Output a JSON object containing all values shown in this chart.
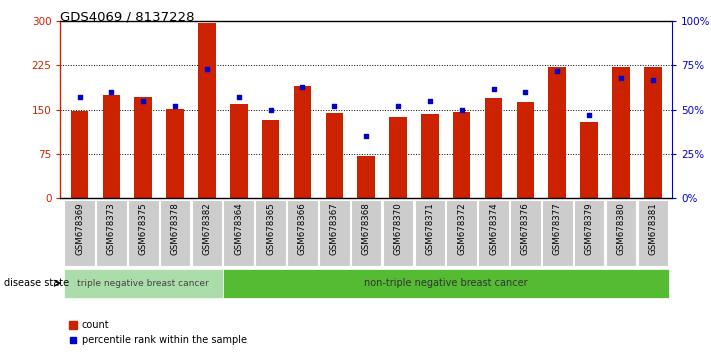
{
  "title": "GDS4069 / 8137228",
  "samples": [
    "GSM678369",
    "GSM678373",
    "GSM678375",
    "GSM678378",
    "GSM678382",
    "GSM678364",
    "GSM678365",
    "GSM678366",
    "GSM678367",
    "GSM678368",
    "GSM678370",
    "GSM678371",
    "GSM678372",
    "GSM678374",
    "GSM678376",
    "GSM678377",
    "GSM678379",
    "GSM678380",
    "GSM678381"
  ],
  "counts": [
    148,
    175,
    172,
    152,
    297,
    160,
    133,
    190,
    144,
    72,
    138,
    143,
    147,
    170,
    163,
    222,
    130,
    222,
    222
  ],
  "percentiles": [
    57,
    60,
    55,
    52,
    73,
    57,
    50,
    63,
    52,
    35,
    52,
    55,
    50,
    62,
    60,
    72,
    47,
    68,
    67
  ],
  "group1_label": "triple negative breast cancer",
  "group2_label": "non-triple negative breast cancer",
  "group1_count": 5,
  "group2_count": 14,
  "bar_color": "#cc2200",
  "dot_color": "#0000cc",
  "bg_color": "#ffffff",
  "ylim_left": [
    0,
    300
  ],
  "ylim_right": [
    0,
    100
  ],
  "yticks_left": [
    0,
    75,
    150,
    225,
    300
  ],
  "ytick_labels_left": [
    "0",
    "75",
    "150",
    "225",
    "300"
  ],
  "yticks_right": [
    0,
    25,
    50,
    75,
    100
  ],
  "ytick_labels_right": [
    "0%",
    "25%",
    "50%",
    "75%",
    "100%"
  ],
  "hlines": [
    75,
    150,
    225
  ],
  "legend_count_label": "count",
  "legend_pct_label": "percentile rank within the sample",
  "disease_state_label": "disease state",
  "group1_bg": "#aaddaa",
  "group2_bg": "#55bb33",
  "tick_label_color1": "#bbbbbb",
  "sample_box_color": "#cccccc"
}
